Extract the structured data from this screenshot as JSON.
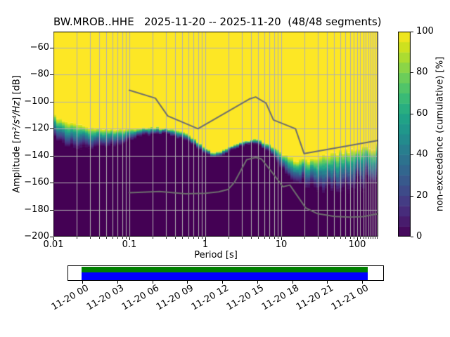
{
  "title": "BW.MROB..HHE   2025-11-20 -- 2025-11-20  (48/48 segments)",
  "station_id": "BW.MROB..HHE",
  "date_start": "2025-11-20",
  "date_end": "2025-11-20",
  "segments_used": 48,
  "segments_total": 48,
  "axes": {
    "xlabel": "Period [s]",
    "ylabel_prefix": "Amplitude [",
    "ylabel_math": "m²/s⁴/Hz",
    "ylabel_suffix": "] [dB]"
  },
  "colorbar": {
    "label": "non-exceedance (cumulative) [%]",
    "tick_labels": [
      "0",
      "20",
      "40",
      "60",
      "80",
      "100"
    ]
  },
  "chart_data": {
    "type": "heatmap",
    "title": "BW.MROB..HHE   2025-11-20 -- 2025-11-20  (48/48 segments)",
    "xlabel": "Period [s]",
    "ylabel": "Amplitude [m²/s⁴/Hz] [dB]",
    "colorbar_label": "non-exceedance (cumulative) [%]",
    "x_scale": "log",
    "xlim": [
      0.01,
      190
    ],
    "ylim": [
      -200,
      -48
    ],
    "grid": true,
    "x_tick_values": [
      0.01,
      0.1,
      1,
      10,
      100
    ],
    "x_tick_labels": [
      "0.01",
      "0.1",
      "1",
      "10",
      "100"
    ],
    "y_tick_values": [
      -60,
      -80,
      -100,
      -120,
      -140,
      -160,
      -180,
      -200
    ],
    "y_tick_labels": [
      "−60",
      "−80",
      "−100",
      "−120",
      "−140",
      "−160",
      "−180",
      "−200"
    ],
    "colorbar_tick_values": [
      0,
      20,
      40,
      60,
      80,
      100
    ],
    "colormap": "viridis",
    "colormap_stops": [
      "#440154",
      "#471365",
      "#482475",
      "#463480",
      "#414487",
      "#3b528b",
      "#355f8d",
      "#2f6c8e",
      "#2a788e",
      "#25848e",
      "#21918c",
      "#1e9c89",
      "#22a884",
      "#2fb47c",
      "#44bf70",
      "#5ec962",
      "#7ad151",
      "#9bd93c",
      "#bddf26",
      "#dfe318",
      "#fde725"
    ],
    "top_color": "#fde725",
    "bottom_color": "#440154",
    "grid_color": "#b0b0b0",
    "noise_model_color": "#6e6e6e",
    "psd_band": {
      "log_period": [
        -2.0,
        -1.93,
        -1.85,
        -1.7,
        -1.55,
        -1.4,
        -1.25,
        -1.1,
        -0.95,
        -0.8,
        -0.65,
        -0.5,
        -0.38,
        -0.25,
        -0.12,
        0.0,
        0.08,
        0.2,
        0.35,
        0.5,
        0.67,
        0.8,
        0.92,
        1.0,
        1.1,
        1.25,
        1.4,
        1.55,
        1.7,
        1.85,
        2.0,
        2.15,
        2.28
      ],
      "db_top": [
        -109.5,
        -112.5,
        -115.5,
        -117.5,
        -119.2,
        -119.9,
        -120.5,
        -120.6,
        -120.0,
        -119.2,
        -119.0,
        -120.0,
        -121.0,
        -123.5,
        -128.5,
        -134.0,
        -137.5,
        -137.0,
        -132.8,
        -130.0,
        -127.8,
        -130.5,
        -134.5,
        -138.0,
        -142.0,
        -143.5,
        -143.0,
        -140.5,
        -138.0,
        -136.0,
        -134.5,
        -133.3,
        -132.5
      ],
      "db_bottom": [
        -126.0,
        -129.5,
        -132.5,
        -134.5,
        -135.0,
        -134.3,
        -133.3,
        -131.5,
        -128.0,
        -125.0,
        -123.5,
        -124.5,
        -126.5,
        -129.5,
        -133.5,
        -139.0,
        -141.0,
        -140.5,
        -135.8,
        -132.8,
        -130.5,
        -135.0,
        -143.0,
        -150.0,
        -156.0,
        -161.0,
        -163.5,
        -165.5,
        -167.0,
        -166.0,
        -163.0,
        -160.0,
        -157.0
      ]
    },
    "noise_models": [
      {
        "name": "NHNM",
        "periods": [
          0.1,
          0.22,
          0.32,
          0.8,
          3.8,
          4.6,
          6.3,
          7.9,
          15.4,
          20.0,
          190.0
        ],
        "db": [
          -91.5,
          -97.4,
          -110.5,
          -120.0,
          -98.0,
          -96.5,
          -101.0,
          -113.5,
          -120.0,
          -138.5,
          -128.7
        ]
      },
      {
        "name": "NLNM",
        "periods": [
          0.1,
          0.25,
          0.55,
          1.0,
          1.5,
          2.0,
          2.4,
          3.5,
          4.6,
          5.5,
          7.5,
          10.5,
          13.0,
          21.0,
          30.0,
          50.0,
          80.0,
          120.0,
          190.0
        ],
        "db": [
          -167.5,
          -166.6,
          -168.3,
          -167.8,
          -166.8,
          -165.0,
          -160.0,
          -143.0,
          -141.3,
          -142.5,
          -152.0,
          -163.0,
          -161.8,
          -178.7,
          -183.0,
          -185.0,
          -185.6,
          -185.2,
          -183.0
        ]
      }
    ],
    "timeline": {
      "tick_labels": [
        "11-20 00",
        "11-20 03",
        "11-20 06",
        "11-20 09",
        "11-20 12",
        "11-20 15",
        "11-20 18",
        "11-20 21",
        "11-21 00"
      ],
      "data_color": "#008000",
      "segment_color": "#0000ff"
    }
  }
}
